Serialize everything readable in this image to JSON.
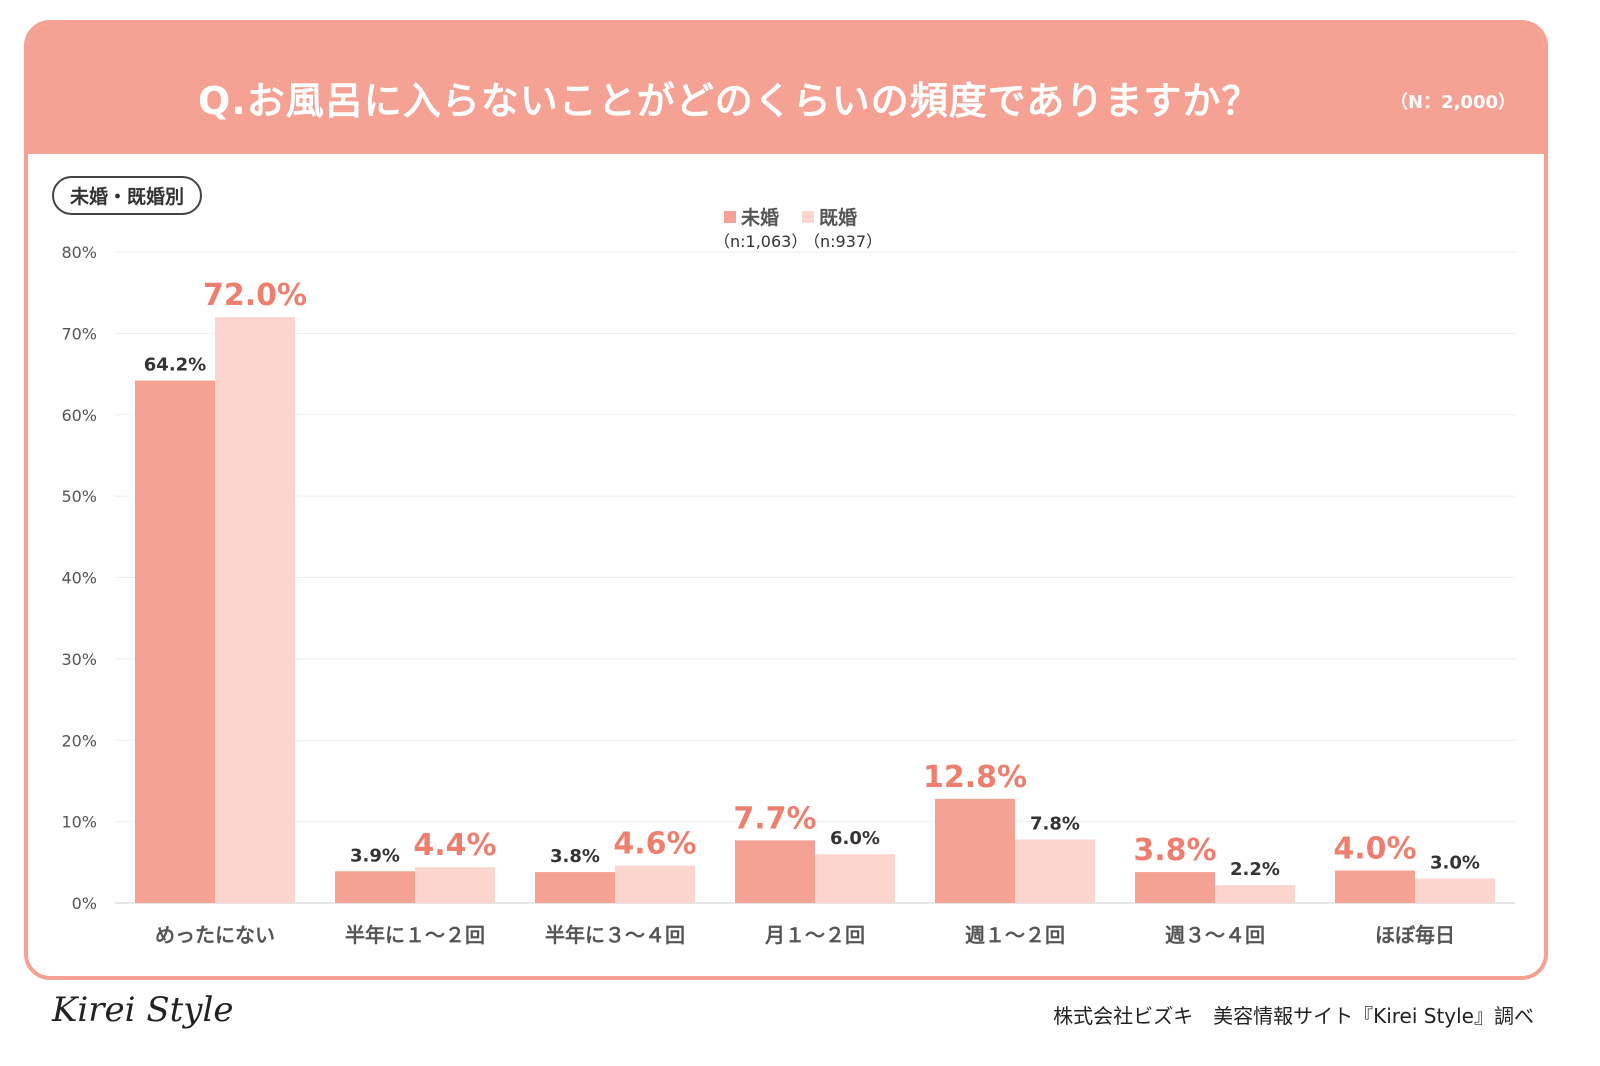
{
  "title": "Q.お風呂に入らないことがどのくらいの頻度でありますか？",
  "total_n": "（N：2,000）",
  "badge": "未婚・既婚別",
  "footer": {
    "logo": "Kirei Style",
    "credit": "株式会社ビズキ　美容情報サイト『Kirei Style』調べ"
  },
  "chart_data": {
    "type": "bar",
    "categories": [
      "めったにない",
      "半年に１～２回",
      "半年に３～４回",
      "月１～２回",
      "週１～２回",
      "週３～４回",
      "ほぼ毎日"
    ],
    "series": [
      {
        "name": "未婚",
        "n": "（n:1,063）",
        "color": "#F5A193",
        "values": [
          64.2,
          3.9,
          3.8,
          7.7,
          12.8,
          3.8,
          4.0
        ]
      },
      {
        "name": "既婚",
        "n": "（n:937）",
        "color": "#FCD5CF",
        "values": [
          72.0,
          4.4,
          4.6,
          6.0,
          7.8,
          2.2,
          3.0
        ]
      }
    ],
    "ylim": [
      0,
      80
    ],
    "yticks": [
      "0%",
      "10%",
      "20%",
      "30%",
      "40%",
      "50%",
      "60%",
      "70%",
      "80%"
    ],
    "grid": true,
    "legend": "top-center",
    "highlight_color": "#EE7F6E"
  }
}
